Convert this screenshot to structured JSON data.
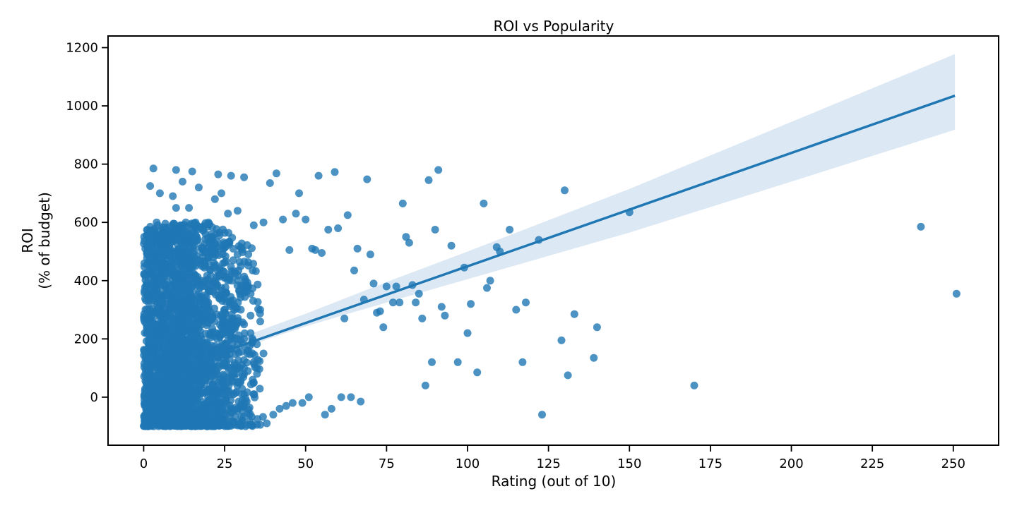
{
  "chart_data": {
    "type": "scatter",
    "title": "ROI vs Popularity",
    "xlabel": "Rating (out of 10)",
    "ylabel_lines": [
      "ROI",
      "(% of budget)"
    ],
    "xlim": [
      -11,
      264
    ],
    "ylim": [
      -165,
      1240
    ],
    "x_ticks": [
      0,
      25,
      50,
      75,
      100,
      125,
      150,
      175,
      200,
      225,
      250
    ],
    "y_ticks": [
      0,
      200,
      400,
      600,
      800,
      1000,
      1200
    ],
    "grid": false,
    "legend": "none",
    "colors": {
      "points": "#1f77b4",
      "line": "#1f77b4",
      "band": "#dce8f4",
      "axis": "#000000"
    },
    "regression": {
      "x": [
        0,
        250.5
      ],
      "y": [
        60,
        1035
      ],
      "ci_x": [
        0,
        25,
        50,
        75,
        100,
        150,
        200,
        250.5
      ],
      "ci_lower": [
        48,
        150,
        243,
        325,
        405,
        565,
        740,
        918
      ],
      "ci_upper": [
        72,
        185,
        286,
        395,
        500,
        715,
        945,
        1178
      ]
    },
    "points": {
      "x": [
        3,
        2,
        0.5,
        10,
        15,
        23,
        27,
        31,
        41,
        48,
        54,
        59,
        69,
        80,
        88,
        91,
        1,
        4,
        6,
        9,
        12,
        14,
        17,
        20,
        22,
        26,
        29,
        34,
        37,
        39,
        43,
        45,
        47,
        50,
        52,
        53,
        55,
        57,
        60,
        62,
        63,
        65,
        66,
        68,
        70,
        71,
        72,
        73,
        74,
        75,
        77,
        78,
        79,
        81,
        82,
        83,
        84,
        85,
        86,
        87,
        89,
        90,
        92,
        93,
        95,
        97,
        99,
        100,
        101,
        103,
        105,
        106,
        107,
        109,
        110,
        113,
        115,
        117,
        118,
        122,
        123,
        129,
        130,
        131,
        133,
        139,
        140,
        150,
        170,
        240,
        251,
        5,
        8,
        11,
        13,
        16,
        18,
        19,
        21,
        24,
        28,
        30,
        32,
        33,
        35,
        36,
        38,
        40,
        42,
        44,
        46,
        49,
        51,
        56,
        58,
        61,
        64,
        67,
        2,
        7,
        9,
        12,
        15,
        18,
        21,
        25,
        28,
        31,
        34,
        37,
        6,
        10,
        14,
        19,
        23,
        27,
        32,
        36,
        4,
        8,
        13,
        17,
        22,
        26,
        30,
        35,
        3,
        7,
        11,
        16,
        20,
        24,
        29,
        33,
        5,
        9,
        14,
        18,
        22,
        27,
        31,
        36,
        2,
        6,
        10,
        15,
        19,
        23,
        28,
        32,
        4,
        8,
        12,
        17,
        21,
        25,
        30,
        34,
        3,
        7,
        11,
        16,
        20,
        24,
        29,
        33,
        5,
        9,
        13,
        18,
        22,
        26,
        31,
        35
      ],
      "y": [
        785,
        725,
        415,
        780,
        775,
        765,
        760,
        755,
        768,
        700,
        760,
        773,
        748,
        665,
        745,
        780,
        300,
        480,
        560,
        690,
        740,
        650,
        720,
        600,
        680,
        630,
        640,
        590,
        600,
        735,
        610,
        505,
        630,
        610,
        510,
        505,
        495,
        575,
        580,
        270,
        625,
        435,
        510,
        335,
        490,
        390,
        290,
        295,
        240,
        380,
        325,
        380,
        325,
        550,
        530,
        385,
        325,
        355,
        270,
        40,
        120,
        575,
        310,
        280,
        520,
        120,
        445,
        220,
        320,
        85,
        665,
        375,
        400,
        515,
        500,
        575,
        300,
        120,
        325,
        540,
        -60,
        195,
        710,
        75,
        285,
        135,
        240,
        635,
        40,
        585,
        355,
        -95,
        -95,
        -95,
        -95,
        -95,
        -95,
        -95,
        -95,
        -95,
        -95,
        -95,
        -95,
        -95,
        -95,
        -95,
        -90,
        -60,
        -40,
        -30,
        -20,
        -20,
        0,
        -60,
        -40,
        0,
        0,
        -15,
        200,
        350,
        100,
        450,
        50,
        250,
        150,
        300,
        100,
        200,
        50,
        150,
        0,
        400,
        200,
        350,
        100,
        250,
        150,
        300,
        600,
        100,
        500,
        200,
        400,
        50,
        300,
        80,
        150,
        550,
        250,
        450,
        120,
        350,
        180,
        220,
        350,
        50,
        300,
        150,
        500,
        200,
        100,
        260,
        80,
        250,
        650,
        100,
        400,
        50,
        300,
        160,
        450,
        0,
        350,
        250,
        550,
        150,
        450,
        120,
        50,
        500,
        100,
        600,
        300,
        700,
        200,
        280,
        700,
        200,
        600,
        300,
        500,
        400,
        250,
        100
      ]
    },
    "dense_region": {
      "x": [
        0,
        37
      ],
      "y": [
        -100,
        600
      ]
    }
  }
}
